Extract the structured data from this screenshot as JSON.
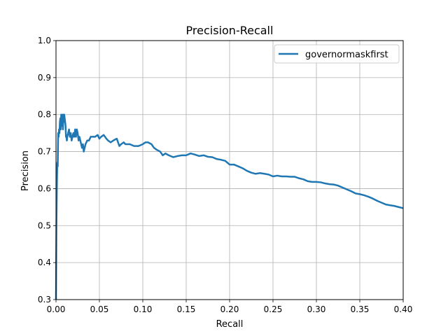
{
  "chart_data": {
    "type": "line",
    "title": "Precision-Recall",
    "xlabel": "Recall",
    "ylabel": "Precision",
    "xlim": [
      0.0,
      0.4
    ],
    "ylim": [
      0.3,
      1.0
    ],
    "xticks": [
      "0.00",
      "0.05",
      "0.10",
      "0.15",
      "0.20",
      "0.25",
      "0.30",
      "0.35",
      "0.40"
    ],
    "yticks": [
      "0.3",
      "0.4",
      "0.5",
      "0.6",
      "0.7",
      "0.8",
      "0.9",
      "1.0"
    ],
    "xtick_values": [
      0.0,
      0.05,
      0.1,
      0.15,
      0.2,
      0.25,
      0.3,
      0.35,
      0.4
    ],
    "ytick_values": [
      0.3,
      0.4,
      0.5,
      0.6,
      0.7,
      0.8,
      0.9,
      1.0
    ],
    "grid": true,
    "legend_position": "top-right",
    "series": [
      {
        "name": "governormaskfirst",
        "color": "#1f77b4",
        "x": [
          0.0,
          0.0005,
          0.001,
          0.0015,
          0.002,
          0.0025,
          0.003,
          0.0035,
          0.004,
          0.0045,
          0.005,
          0.0055,
          0.006,
          0.0065,
          0.007,
          0.0075,
          0.008,
          0.0085,
          0.009,
          0.0095,
          0.01,
          0.0105,
          0.011,
          0.0115,
          0.012,
          0.0125,
          0.013,
          0.014,
          0.015,
          0.016,
          0.017,
          0.018,
          0.019,
          0.02,
          0.021,
          0.022,
          0.023,
          0.024,
          0.025,
          0.026,
          0.027,
          0.028,
          0.029,
          0.03,
          0.031,
          0.032,
          0.034,
          0.036,
          0.038,
          0.04,
          0.042,
          0.045,
          0.048,
          0.05,
          0.052,
          0.055,
          0.058,
          0.06,
          0.063,
          0.066,
          0.07,
          0.073,
          0.075,
          0.078,
          0.08,
          0.085,
          0.09,
          0.095,
          0.1,
          0.103,
          0.106,
          0.11,
          0.113,
          0.116,
          0.12,
          0.123,
          0.126,
          0.13,
          0.135,
          0.14,
          0.145,
          0.15,
          0.155,
          0.16,
          0.165,
          0.17,
          0.175,
          0.18,
          0.185,
          0.19,
          0.195,
          0.2,
          0.205,
          0.21,
          0.215,
          0.22,
          0.225,
          0.23,
          0.235,
          0.24,
          0.245,
          0.25,
          0.255,
          0.26,
          0.265,
          0.27,
          0.275,
          0.28,
          0.285,
          0.29,
          0.295,
          0.3,
          0.305,
          0.31,
          0.315,
          0.32,
          0.325,
          0.33,
          0.335,
          0.34,
          0.345,
          0.35,
          0.355,
          0.36,
          0.365,
          0.37,
          0.375,
          0.38,
          0.385,
          0.39,
          0.395,
          0.4
        ],
        "y": [
          0.3,
          0.5,
          0.6,
          0.67,
          0.66,
          0.75,
          0.74,
          0.76,
          0.75,
          0.78,
          0.79,
          0.76,
          0.8,
          0.77,
          0.79,
          0.8,
          0.76,
          0.8,
          0.78,
          0.8,
          0.79,
          0.78,
          0.77,
          0.74,
          0.74,
          0.73,
          0.74,
          0.75,
          0.76,
          0.74,
          0.75,
          0.73,
          0.74,
          0.75,
          0.74,
          0.76,
          0.74,
          0.76,
          0.75,
          0.73,
          0.74,
          0.73,
          0.72,
          0.71,
          0.72,
          0.7,
          0.72,
          0.73,
          0.73,
          0.74,
          0.74,
          0.74,
          0.745,
          0.735,
          0.74,
          0.745,
          0.735,
          0.73,
          0.725,
          0.73,
          0.735,
          0.715,
          0.72,
          0.725,
          0.72,
          0.72,
          0.715,
          0.715,
          0.72,
          0.725,
          0.725,
          0.72,
          0.71,
          0.705,
          0.7,
          0.69,
          0.695,
          0.69,
          0.685,
          0.688,
          0.69,
          0.69,
          0.695,
          0.692,
          0.688,
          0.69,
          0.686,
          0.685,
          0.68,
          0.678,
          0.675,
          0.665,
          0.665,
          0.66,
          0.655,
          0.648,
          0.643,
          0.64,
          0.642,
          0.64,
          0.638,
          0.633,
          0.635,
          0.633,
          0.633,
          0.632,
          0.632,
          0.628,
          0.625,
          0.62,
          0.618,
          0.618,
          0.617,
          0.614,
          0.612,
          0.611,
          0.608,
          0.603,
          0.598,
          0.593,
          0.587,
          0.585,
          0.582,
          0.578,
          0.573,
          0.567,
          0.562,
          0.557,
          0.555,
          0.553,
          0.55,
          0.547
        ]
      }
    ]
  }
}
